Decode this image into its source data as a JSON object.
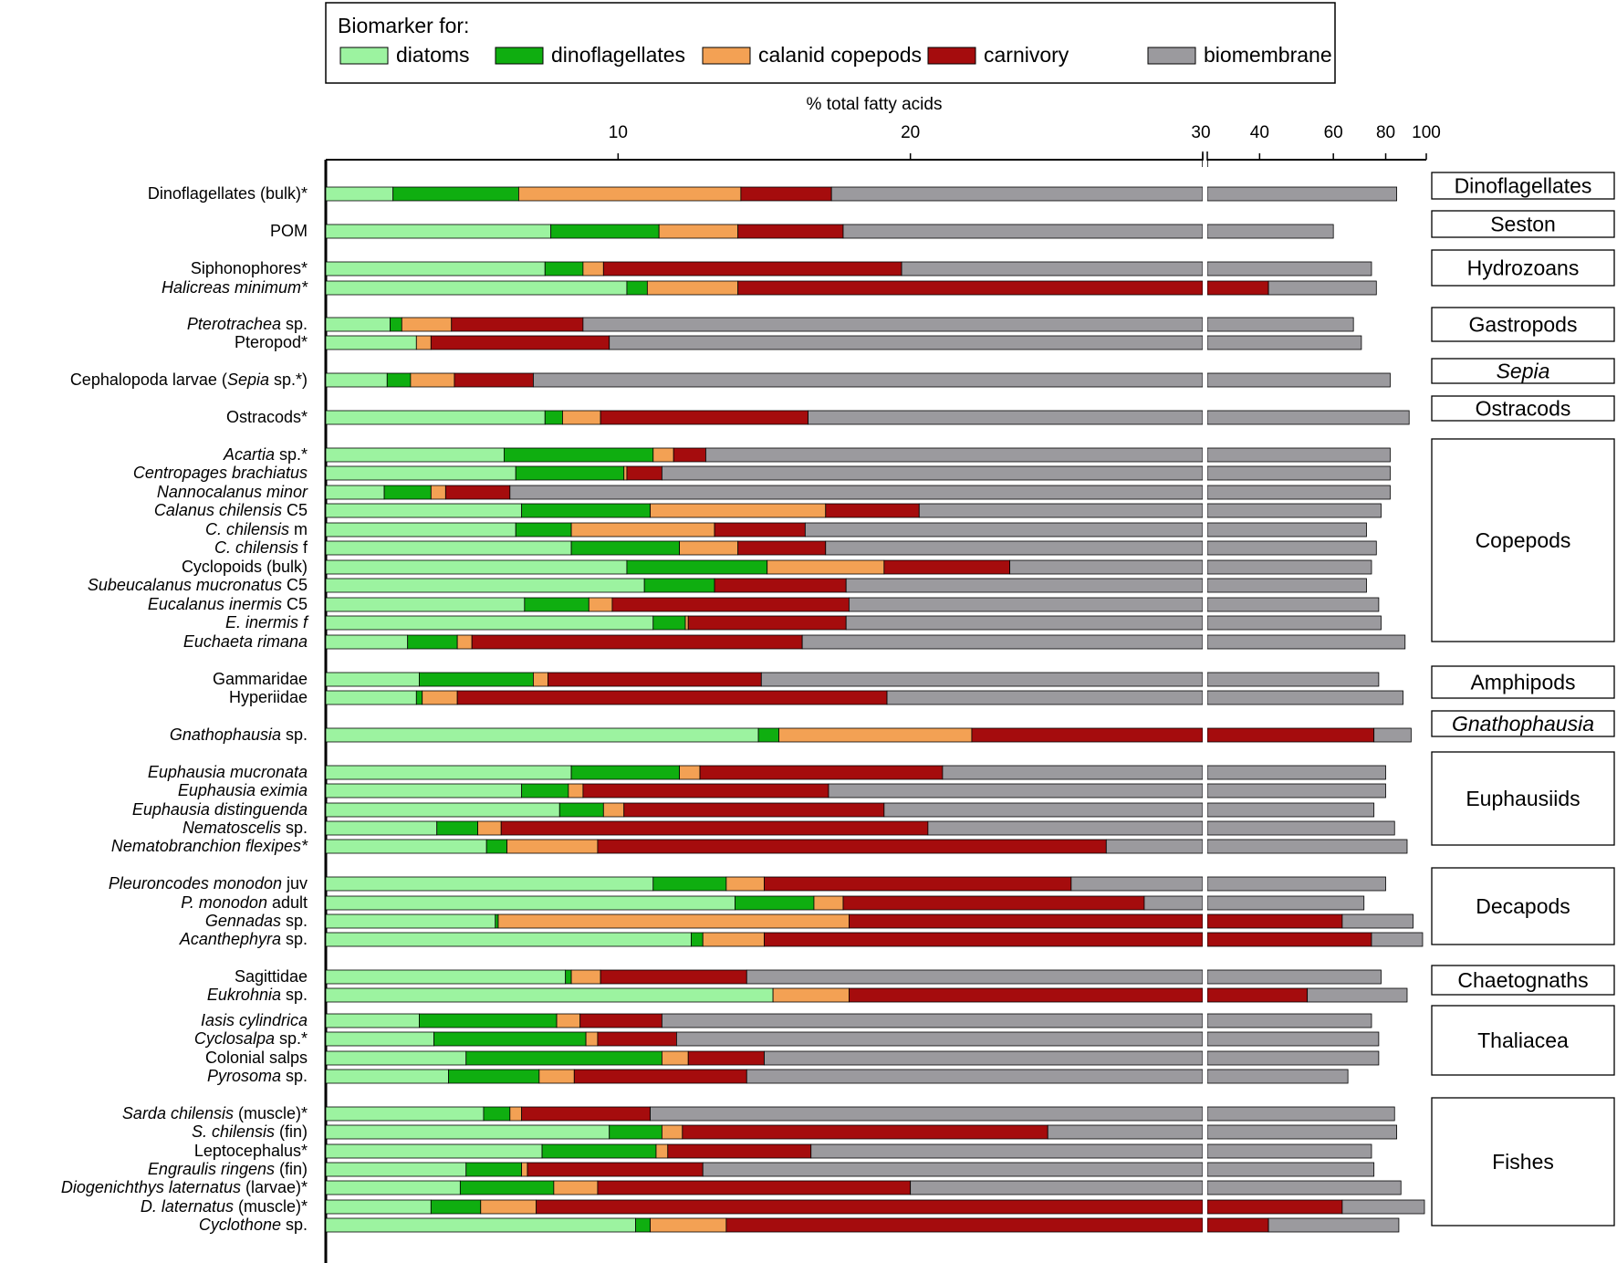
{
  "chart_data": {
    "type": "bar",
    "stacked": true,
    "orientation": "horizontal",
    "xlabel": "% total fatty acids",
    "x_scale": "broken: linear 0–30, log 30–100",
    "x_ticks": [
      "10",
      "20",
      "30",
      "40",
      "60",
      "80",
      "100"
    ],
    "legend": {
      "title": "Biomarker for:",
      "placement": "top",
      "items": [
        {
          "name": "diatoms",
          "color": "#9cf3a0"
        },
        {
          "name": "dinoflagellates",
          "color": "#0fae10"
        },
        {
          "name": "calanid copepods",
          "color": "#f3a154"
        },
        {
          "name": "carnivory",
          "color": "#a50c0d"
        },
        {
          "name": "biomembrane",
          "color": "#9b9a9e"
        }
      ]
    },
    "series_names": [
      "diatoms",
      "dinoflagellates",
      "calanid copepods",
      "carnivory",
      "biomembrane"
    ],
    "rows": [
      {
        "label": "Dinoflagellates (bulk)*",
        "ends": [
          2.3,
          6.6,
          14.2,
          17.3,
          85
        ]
      },
      {
        "label": "POM",
        "ends": [
          7.7,
          11.4,
          14.1,
          17.7,
          60
        ]
      },
      {
        "label": "Siphonophores*",
        "ends": [
          7.5,
          8.8,
          9.5,
          19.7,
          74
        ]
      },
      {
        "label": "Halicreas minimum*",
        "italic": true,
        "ends": [
          10.3,
          11.0,
          14.1,
          30,
          42,
          76
        ]
      },
      {
        "label": "Pterotrachea sp.",
        "italic_part": "Pterotrachea",
        "ends": [
          2.2,
          2.6,
          4.3,
          8.8,
          67
        ]
      },
      {
        "label": "Pteropod*",
        "ends": [
          3.1,
          3.6,
          9.7,
          70
        ]
      },
      {
        "label": "Cephalopoda larvae (Sepia sp.*)",
        "ends": [
          2.1,
          2.9,
          4.4,
          7.1,
          82
        ]
      },
      {
        "label": "Ostracods*",
        "ends": [
          7.5,
          8.1,
          9.4,
          16.5,
          91
        ]
      },
      {
        "label": "Acartia sp.*",
        "italic_part": "Acartia",
        "ends": [
          6.1,
          11.2,
          11.9,
          13.0,
          82
        ]
      },
      {
        "label": "Centropages brachiatus",
        "italic": true,
        "ends": [
          6.5,
          10.2,
          10.3,
          11.5,
          82
        ]
      },
      {
        "label": "Nannocalanus minor",
        "italic": true,
        "ends": [
          2.0,
          3.6,
          4.1,
          6.3,
          82
        ]
      },
      {
        "label": "Calanus chilensis C5",
        "italic_part": "Calanus chilensis",
        "ends": [
          6.7,
          11.1,
          17.1,
          20.3,
          78
        ]
      },
      {
        "label": "C. chilensis m",
        "italic_part": "C. chilensis",
        "ends": [
          6.5,
          8.4,
          13.3,
          16.4,
          72
        ]
      },
      {
        "label": "C. chilensis f",
        "italic_part": "C. chilensis",
        "ends": [
          8.4,
          12.1,
          14.1,
          17.1,
          76
        ]
      },
      {
        "label": "Cyclopoids (bulk)",
        "ends": [
          10.3,
          15.1,
          19.1,
          23.4,
          74
        ]
      },
      {
        "label": "Subeucalanus mucronatus C5",
        "italic_part": "Subeucalanus mucronatus",
        "ends": [
          10.9,
          13.3,
          17.8,
          72
        ]
      },
      {
        "label": "Eucalanus inermis C5",
        "italic_part": "Eucalanus inermis",
        "ends": [
          6.8,
          9.0,
          9.8,
          17.9,
          77
        ]
      },
      {
        "label": "E. inermis f",
        "italic": true,
        "ends": [
          11.2,
          12.3,
          12.4,
          17.8,
          78
        ]
      },
      {
        "label": "Euchaeta rimana",
        "italic": true,
        "ends": [
          2.8,
          4.5,
          5.0,
          16.3,
          89
        ]
      },
      {
        "label": "Gammaridae",
        "ends": [
          3.2,
          7.1,
          7.6,
          14.9,
          77
        ]
      },
      {
        "label": "Hyperiidae",
        "ends": [
          3.1,
          3.3,
          4.5,
          19.2,
          88
        ]
      },
      {
        "label": "Gnathophausia sp.",
        "italic_part": "Gnathophausia",
        "ends": [
          14.8,
          15.5,
          22.1,
          30,
          75,
          92
        ]
      },
      {
        "label": "Euphausia mucronata",
        "italic": true,
        "ends": [
          8.4,
          12.1,
          12.8,
          21.1,
          80
        ]
      },
      {
        "label": "Euphausia eximia",
        "italic": true,
        "ends": [
          6.7,
          8.3,
          8.8,
          17.2,
          80
        ]
      },
      {
        "label": "Euphausia distinguenda",
        "italic": true,
        "ends": [
          8.0,
          9.5,
          10.2,
          19.1,
          75
        ]
      },
      {
        "label": "Nematoscelis sp.",
        "italic_part": "Nematoscelis",
        "ends": [
          3.8,
          5.2,
          6.0,
          20.6,
          84
        ]
      },
      {
        "label": "Nematobranchion flexipes*",
        "italic": true,
        "ends": [
          5.5,
          6.2,
          9.3,
          26.7,
          90
        ]
      },
      {
        "label": "Pleuroncodes monodon juv",
        "italic_part": "Pleuroncodes monodon",
        "ends": [
          11.2,
          13.7,
          15.0,
          25.5,
          80
        ]
      },
      {
        "label": "P. monodon adult",
        "italic_part": "P. monodon",
        "ends": [
          14.0,
          16.7,
          17.7,
          28.0,
          71
        ]
      },
      {
        "label": "Gennadas sp.",
        "italic_part": "Gennadas",
        "ends": [
          5.8,
          5.9,
          17.9,
          30,
          63,
          93
        ]
      },
      {
        "label": "Acanthephyra sp.",
        "italic_part": "Acanthephyra",
        "ends": [
          12.5,
          12.9,
          15.0,
          30,
          74,
          98
        ]
      },
      {
        "label": "Sagittidae",
        "ends": [
          8.2,
          8.4,
          9.4,
          14.4,
          78
        ]
      },
      {
        "label": "Eukrohnia sp.",
        "italic_part": "Eukrohnia",
        "ends": [
          15.3,
          17.9,
          30,
          52,
          90
        ]
      },
      {
        "label": "Iasis cylindrica",
        "italic": true,
        "ends": [
          3.2,
          7.9,
          8.7,
          11.5,
          74
        ]
      },
      {
        "label": "Cyclosalpa sp.*",
        "italic_part": "Cyclosalpa",
        "ends": [
          3.7,
          8.9,
          9.3,
          12.0,
          77
        ]
      },
      {
        "label": "Colonial salps",
        "ends": [
          4.8,
          11.5,
          12.4,
          15.0,
          77
        ]
      },
      {
        "label": "Pyrosoma sp.",
        "italic_part": "Pyrosoma",
        "ends": [
          4.2,
          7.3,
          8.5,
          14.4,
          65
        ]
      },
      {
        "label": "Sarda chilensis (muscle)*",
        "italic_part": "Sarda chilensis",
        "ends": [
          5.4,
          6.3,
          6.7,
          11.1,
          84
        ]
      },
      {
        "label": "S. chilensis (fin)",
        "italic_part": "S. chilensis",
        "ends": [
          9.7,
          11.5,
          12.2,
          24.7,
          85
        ]
      },
      {
        "label": "Leptocephalus*",
        "ends": [
          7.4,
          11.3,
          11.7,
          16.6,
          74
        ]
      },
      {
        "label": "Engraulis ringens (fin)",
        "italic_part": "Engraulis ringens",
        "ends": [
          4.8,
          6.7,
          6.9,
          12.9,
          75
        ]
      },
      {
        "label": "Diogenichthys laternatus (larvae)*",
        "italic_part": "Diogenichthys laternatus",
        "ends": [
          4.6,
          7.8,
          9.3,
          20.0,
          87
        ]
      },
      {
        "label": "D. laternatus (muscle)*",
        "italic_part": "D. laternatus",
        "ends": [
          3.6,
          5.3,
          7.2,
          30,
          63,
          99
        ]
      },
      {
        "label": "Cyclothone sp.",
        "italic_part": "Cyclothone",
        "ends": [
          10.6,
          11.1,
          13.7,
          30,
          42,
          86
        ]
      }
    ],
    "row_series_order_note": "ends are cumulative right edges; 4-value rows omit the dinoflagellates or calanid segment per figure; 6-value rows split carnivory across the break",
    "groups": [
      {
        "name": "Dinoflagellates"
      },
      {
        "name": "Seston"
      },
      {
        "name": "Hydrozoans"
      },
      {
        "name": "Gastropods"
      },
      {
        "name": "Sepia"
      },
      {
        "name": "Ostracods"
      },
      {
        "name": "Copepods"
      },
      {
        "name": "Amphipods"
      },
      {
        "name": "Gnathophausia"
      },
      {
        "name": "Euphausiids"
      },
      {
        "name": "Decapods"
      },
      {
        "name": "Chaetognaths"
      },
      {
        "name": "Thaliacea"
      },
      {
        "name": "Fishes"
      }
    ]
  }
}
